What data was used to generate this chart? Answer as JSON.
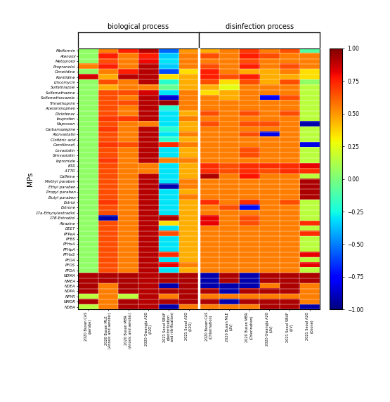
{
  "y_labels": [
    "Metformin",
    "Atenolol",
    "Metoprolol",
    "Propranolol",
    "Cimetidine",
    "Ranitidine",
    "Lincomycin",
    "Sulfathiazole",
    "Sulfamethazine",
    "Sulfamethoxazole",
    "Trimethoprim",
    "Acetaminophen",
    "Diclofenac",
    "Ibuprofen",
    "Naproxen",
    "Carbamazepine",
    "Atorvastatin",
    "Clofibric acid",
    "Gemfibrozil",
    "Lovastatin",
    "Simvastatin",
    "Iopromide",
    "BTR",
    "4-TTR",
    "Caffeine",
    "Methyl paraben",
    "Ethyl paraben",
    "Propyl paraben",
    "Butyl paraben",
    "Estriol",
    "Estrone",
    "17a-Ethynylestradiol",
    "17B-Estradiol",
    "Atrazine",
    "DEET",
    "PFPeA",
    "PFBS",
    "PFHxA",
    "PFHpA",
    "PFHxS",
    "PFOA",
    "PFOS",
    "PFDA",
    "NDMA",
    "NMEA",
    "NDEA",
    "NDPA",
    "NPYR",
    "NMOR",
    "NDBA"
  ],
  "x_labels": [
    "2020 Busan CAS\n(aerobe)",
    "2020 Busan MLE\n(Anoxic and aerobic)",
    "2020 Busan MBR\n(Anoxic and aerobic)",
    "2020 Gwangju A2O\n(A2O)",
    "2021 Seoul SBAF\n(denitrification\nand nitrification)",
    "2021 Seoul A2O\n(A2O)",
    "2020 Busan CAS\n(Chlorination)",
    "2020 Busan MLE\n(UV)",
    "2020 Busan MBR\n(Chlorination)",
    "2020 Gwangju A2O\n(UV)",
    "2021 Seoul SBAF\n(UV)",
    "2021 Seoul A2O\n(Ozone)"
  ],
  "heatmap_data": [
    [
      0.05,
      0.55,
      0.75,
      0.9,
      -0.55,
      0.5,
      0.45,
      0.55,
      0.7,
      0.55,
      0.65,
      -0.1
    ],
    [
      0.05,
      0.75,
      0.55,
      0.75,
      -0.35,
      0.55,
      0.65,
      0.55,
      0.75,
      0.65,
      0.55,
      0.55
    ],
    [
      0.05,
      0.65,
      0.55,
      0.8,
      -0.3,
      0.55,
      0.55,
      0.55,
      0.65,
      0.55,
      0.55,
      0.55
    ],
    [
      0.55,
      0.75,
      0.55,
      0.9,
      -0.35,
      0.55,
      0.65,
      0.55,
      0.75,
      0.55,
      0.65,
      0.55
    ],
    [
      0.05,
      0.55,
      0.75,
      0.9,
      -0.6,
      0.35,
      0.75,
      0.55,
      0.45,
      0.45,
      0.55,
      0.35
    ],
    [
      0.85,
      0.45,
      0.9,
      0.9,
      0.35,
      0.45,
      0.75,
      0.65,
      0.75,
      0.45,
      0.45,
      0.35
    ],
    [
      0.05,
      0.65,
      0.55,
      0.9,
      -0.2,
      0.45,
      0.65,
      0.35,
      0.65,
      0.45,
      0.65,
      0.05
    ],
    [
      0.05,
      0.45,
      0.55,
      0.55,
      -0.05,
      0.45,
      0.45,
      0.25,
      0.55,
      0.55,
      0.55,
      0.15
    ],
    [
      0.05,
      0.65,
      0.65,
      0.85,
      -0.3,
      0.55,
      0.35,
      0.45,
      0.55,
      0.55,
      0.55,
      0.15
    ],
    [
      0.05,
      0.65,
      0.55,
      0.9,
      -0.85,
      0.55,
      0.55,
      0.45,
      0.55,
      -0.75,
      0.65,
      0.15
    ],
    [
      0.05,
      0.65,
      0.65,
      0.9,
      0.95,
      0.55,
      0.55,
      0.55,
      0.55,
      0.55,
      0.55,
      0.15
    ],
    [
      0.05,
      0.65,
      0.55,
      0.9,
      -0.2,
      0.55,
      0.55,
      0.55,
      0.55,
      0.55,
      0.55,
      0.15
    ],
    [
      0.05,
      0.65,
      0.55,
      0.9,
      -0.3,
      0.45,
      0.65,
      0.55,
      0.65,
      0.55,
      0.65,
      0.15
    ],
    [
      0.05,
      0.7,
      0.7,
      0.9,
      -0.3,
      0.55,
      0.55,
      0.55,
      0.55,
      0.55,
      0.55,
      0.15
    ],
    [
      0.05,
      0.65,
      0.55,
      0.55,
      -0.3,
      0.45,
      0.65,
      0.55,
      0.65,
      0.65,
      0.55,
      -0.92
    ],
    [
      0.05,
      0.7,
      0.55,
      0.9,
      -0.2,
      0.45,
      0.55,
      0.55,
      0.55,
      0.55,
      0.55,
      0.15
    ],
    [
      0.05,
      0.65,
      0.55,
      0.9,
      -0.3,
      0.55,
      0.55,
      0.55,
      0.65,
      -0.82,
      0.55,
      0.15
    ],
    [
      0.05,
      0.65,
      0.55,
      0.9,
      -0.2,
      0.45,
      0.55,
      0.55,
      0.55,
      0.55,
      0.55,
      0.15
    ],
    [
      0.05,
      0.7,
      0.65,
      0.9,
      0.72,
      0.55,
      0.55,
      0.55,
      0.55,
      0.55,
      0.55,
      -0.82
    ],
    [
      0.05,
      0.65,
      0.55,
      0.9,
      -0.3,
      0.45,
      0.55,
      0.55,
      0.65,
      0.55,
      0.55,
      0.15
    ],
    [
      0.05,
      0.65,
      0.55,
      0.9,
      -0.3,
      0.45,
      0.55,
      0.55,
      0.65,
      0.55,
      0.55,
      0.15
    ],
    [
      0.05,
      0.7,
      0.55,
      0.9,
      0.55,
      0.55,
      0.55,
      0.55,
      0.55,
      0.55,
      0.55,
      0.15
    ],
    [
      0.05,
      0.65,
      0.55,
      0.55,
      -0.3,
      0.45,
      0.72,
      0.65,
      0.72,
      0.72,
      0.72,
      0.82
    ],
    [
      0.05,
      0.65,
      0.55,
      0.55,
      -0.3,
      0.45,
      0.72,
      0.65,
      0.72,
      0.65,
      0.72,
      0.72
    ],
    [
      0.05,
      0.65,
      0.55,
      0.9,
      -0.3,
      0.45,
      0.92,
      0.55,
      0.78,
      0.55,
      0.55,
      0.15
    ],
    [
      0.05,
      0.65,
      0.55,
      0.9,
      -0.3,
      0.55,
      0.55,
      0.55,
      0.55,
      0.55,
      0.55,
      0.92
    ],
    [
      0.05,
      0.65,
      0.55,
      0.9,
      -0.92,
      0.55,
      0.55,
      0.55,
      0.55,
      0.55,
      0.55,
      0.92
    ],
    [
      0.05,
      0.65,
      0.55,
      0.9,
      -0.3,
      0.45,
      0.55,
      0.55,
      0.55,
      0.55,
      0.55,
      0.92
    ],
    [
      0.05,
      0.65,
      0.55,
      0.9,
      -0.3,
      0.55,
      0.55,
      0.55,
      0.55,
      0.55,
      0.55,
      0.92
    ],
    [
      0.05,
      0.7,
      0.55,
      0.9,
      -0.3,
      0.45,
      0.72,
      0.55,
      0.72,
      0.55,
      0.65,
      0.15
    ],
    [
      0.05,
      0.65,
      0.55,
      0.9,
      -0.3,
      0.45,
      0.55,
      0.65,
      -0.72,
      0.55,
      0.55,
      0.15
    ],
    [
      0.05,
      0.65,
      0.55,
      0.9,
      -0.3,
      0.45,
      0.55,
      0.55,
      0.55,
      0.55,
      0.55,
      0.15
    ],
    [
      0.05,
      -0.92,
      0.55,
      0.9,
      0.92,
      0.45,
      0.82,
      0.55,
      0.65,
      0.55,
      0.55,
      0.15
    ],
    [
      0.05,
      0.65,
      0.55,
      0.9,
      0.35,
      0.45,
      0.82,
      0.55,
      0.65,
      0.55,
      0.55,
      0.72
    ],
    [
      0.05,
      0.65,
      0.55,
      0.9,
      -0.3,
      0.45,
      0.55,
      0.55,
      0.55,
      0.55,
      0.55,
      0.15
    ],
    [
      0.05,
      0.65,
      0.55,
      0.9,
      0.65,
      0.45,
      0.55,
      0.55,
      0.55,
      0.55,
      0.55,
      0.72
    ],
    [
      0.05,
      0.65,
      0.55,
      0.9,
      -0.3,
      0.45,
      0.55,
      0.55,
      0.55,
      0.55,
      0.55,
      0.15
    ],
    [
      0.05,
      0.65,
      0.55,
      0.9,
      -0.3,
      0.45,
      0.55,
      0.55,
      0.55,
      0.55,
      0.55,
      0.15
    ],
    [
      0.05,
      0.65,
      0.55,
      0.9,
      -0.3,
      0.45,
      0.55,
      0.55,
      0.55,
      0.55,
      0.55,
      0.15
    ],
    [
      0.05,
      0.65,
      0.55,
      0.9,
      0.72,
      0.45,
      0.55,
      0.55,
      0.55,
      0.55,
      0.55,
      0.82
    ],
    [
      0.05,
      0.65,
      0.55,
      0.9,
      -0.3,
      0.45,
      0.55,
      0.55,
      0.55,
      0.55,
      0.55,
      0.15
    ],
    [
      0.05,
      0.65,
      0.55,
      0.9,
      0.82,
      0.55,
      0.55,
      0.55,
      0.55,
      0.55,
      0.55,
      0.82
    ],
    [
      0.05,
      0.65,
      0.55,
      0.9,
      -0.3,
      0.45,
      0.55,
      0.55,
      0.55,
      0.55,
      0.55,
      0.15
    ],
    [
      0.92,
      0.92,
      0.92,
      0.9,
      0.92,
      0.92,
      -0.92,
      0.92,
      -0.92,
      0.92,
      0.92,
      0.92
    ],
    [
      0.92,
      0.92,
      0.92,
      0.9,
      0.92,
      0.92,
      -0.92,
      0.92,
      -0.92,
      0.92,
      0.92,
      0.92
    ],
    [
      0.92,
      0.55,
      0.92,
      0.9,
      -0.92,
      0.92,
      -0.92,
      -0.92,
      -0.92,
      0.55,
      0.92,
      0.55
    ],
    [
      0.92,
      0.55,
      0.92,
      0.9,
      0.92,
      0.92,
      0.92,
      -0.92,
      0.92,
      0.92,
      0.92,
      0.55
    ],
    [
      0.15,
      0.55,
      0.15,
      0.9,
      0.55,
      0.92,
      0.55,
      0.55,
      0.55,
      0.55,
      0.55,
      0.55
    ],
    [
      0.92,
      0.55,
      0.92,
      0.9,
      0.92,
      0.92,
      0.92,
      -0.92,
      0.92,
      0.92,
      0.92,
      0.55
    ],
    [
      0.15,
      0.55,
      0.92,
      0.9,
      -0.92,
      0.55,
      0.55,
      0.55,
      0.55,
      0.92,
      0.92,
      -0.92
    ]
  ],
  "colorbar_ticks": [
    1.0,
    0.75,
    0.5,
    0.25,
    0.0,
    -0.25,
    -0.5,
    -0.75,
    -1.0
  ],
  "vmin": -1.0,
  "vmax": 1.0,
  "ylabel": "MPs",
  "title_bio": "biological process",
  "title_dis": "disinfection process"
}
